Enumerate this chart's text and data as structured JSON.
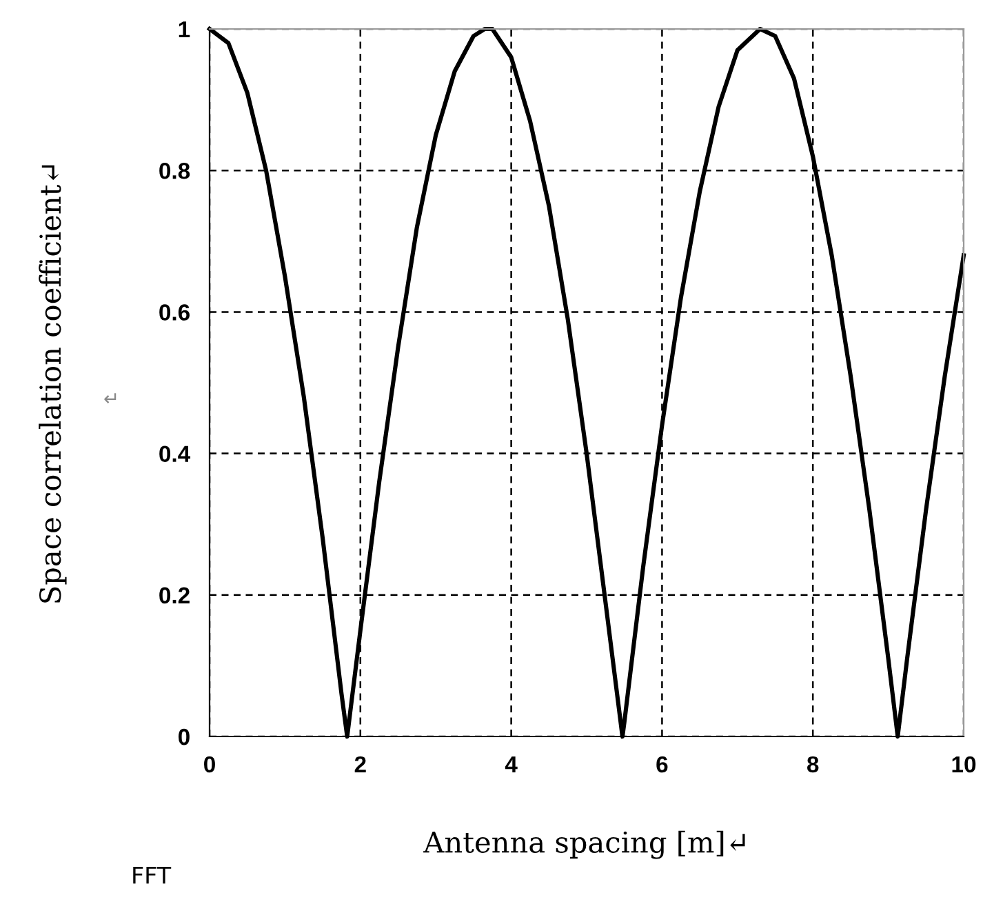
{
  "chart_data": {
    "type": "line",
    "xlabel": "Antenna spacing [m]↵",
    "ylabel": "Space correlation coefficient↵",
    "annotations": [
      "↵",
      "FFT"
    ],
    "x": [
      0,
      0.25,
      0.5,
      0.75,
      1.0,
      1.25,
      1.5,
      1.75,
      1.825,
      2.0,
      2.25,
      2.5,
      2.75,
      3.0,
      3.25,
      3.5,
      3.65,
      3.75,
      4.0,
      4.25,
      4.5,
      4.75,
      5.0,
      5.25,
      5.475,
      5.5,
      5.75,
      6.0,
      6.25,
      6.5,
      6.75,
      7.0,
      7.3,
      7.5,
      7.75,
      8.0,
      8.25,
      8.5,
      8.75,
      9.0,
      9.125,
      9.25,
      9.5,
      9.75,
      10
    ],
    "series": [
      {
        "color": "#000000",
        "values": [
          1.0,
          0.98,
          0.91,
          0.8,
          0.65,
          0.48,
          0.28,
          0.06,
          0.0,
          0.15,
          0.36,
          0.55,
          0.72,
          0.85,
          0.94,
          0.99,
          1.0,
          1.0,
          0.96,
          0.87,
          0.75,
          0.59,
          0.4,
          0.19,
          0.0,
          0.02,
          0.24,
          0.44,
          0.62,
          0.77,
          0.89,
          0.97,
          1.0,
          0.99,
          0.93,
          0.82,
          0.68,
          0.51,
          0.32,
          0.11,
          0.0,
          0.11,
          0.32,
          0.51,
          0.68
        ]
      }
    ],
    "xlim": [
      0,
      10
    ],
    "xticks": [
      0,
      2,
      4,
      6,
      8,
      10
    ],
    "ylim": [
      0,
      1
    ],
    "yticks": [
      0,
      0.2,
      0.4,
      0.6,
      0.8,
      1
    ],
    "grid": true,
    "line_style": "solid",
    "marker": "none",
    "legend": false
  }
}
